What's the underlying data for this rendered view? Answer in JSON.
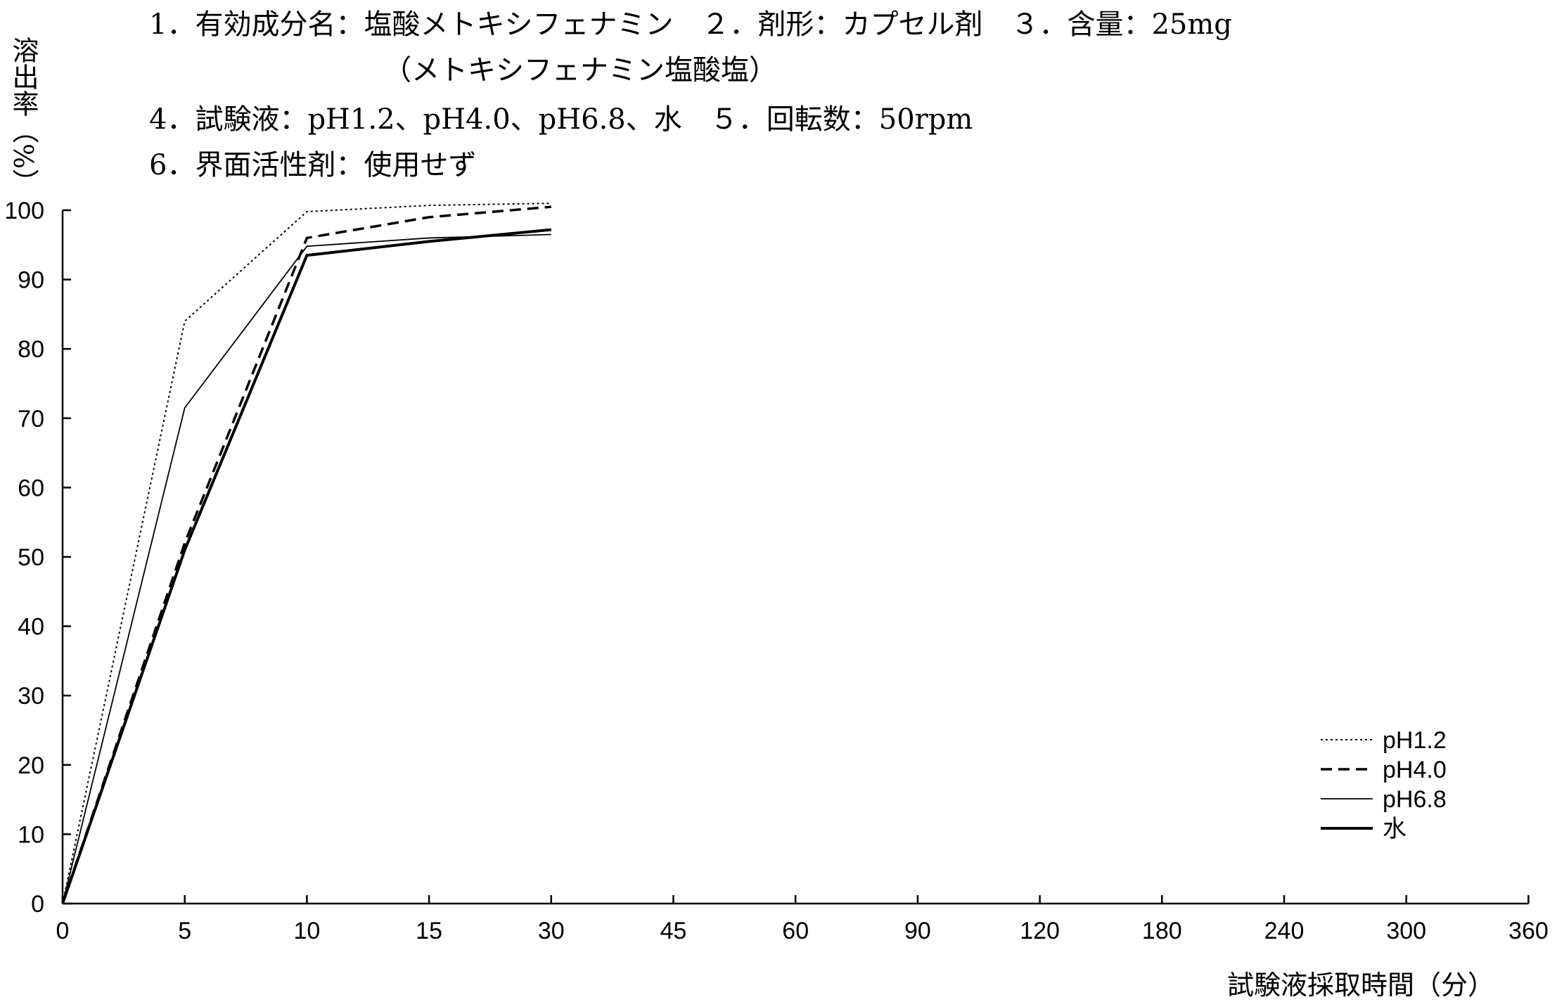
{
  "header": {
    "line1": "1．有効成分名：塩酸メトキシフェナミン　２．剤形：カプセル剤　３．含量：25mg",
    "line2": "（メトキシフェナミン塩酸塩）",
    "line3": "4．試験液：pH1.2、pH4.0、pH6.8、水　５．回転数：50rpm",
    "line4": "6．界面活性剤：使用せず"
  },
  "chart_data": {
    "type": "line",
    "title": "",
    "ylabel": "溶出率（%）",
    "xlabel": "試験液採取時間（分）",
    "categories": [
      "0",
      "5",
      "10",
      "15",
      "30",
      "45",
      "60",
      "90",
      "120",
      "180",
      "240",
      "300",
      "360"
    ],
    "yticks": [
      "0",
      "10",
      "20",
      "30",
      "40",
      "50",
      "60",
      "70",
      "80",
      "90",
      "100"
    ],
    "ylim": [
      0,
      100
    ],
    "grid": false,
    "legend_position": "bottom-right",
    "series": [
      {
        "name": "pH1.2",
        "style": "dotted",
        "x": [
          0,
          5,
          10,
          15,
          30
        ],
        "values": [
          0,
          84,
          99.8,
          100.7,
          101
        ]
      },
      {
        "name": "pH4.0",
        "style": "dashed",
        "x": [
          0,
          5,
          10,
          15,
          30
        ],
        "values": [
          0,
          52,
          96,
          99,
          100.5
        ]
      },
      {
        "name": "pH6.8",
        "style": "thin-solid",
        "x": [
          0,
          5,
          10,
          15,
          30
        ],
        "values": [
          0,
          71.5,
          94.8,
          96,
          96.5
        ]
      },
      {
        "name": "水",
        "style": "thick-solid",
        "x": [
          0,
          5,
          10,
          15,
          30
        ],
        "values": [
          0,
          51,
          93.5,
          95.5,
          97.2
        ]
      }
    ]
  }
}
